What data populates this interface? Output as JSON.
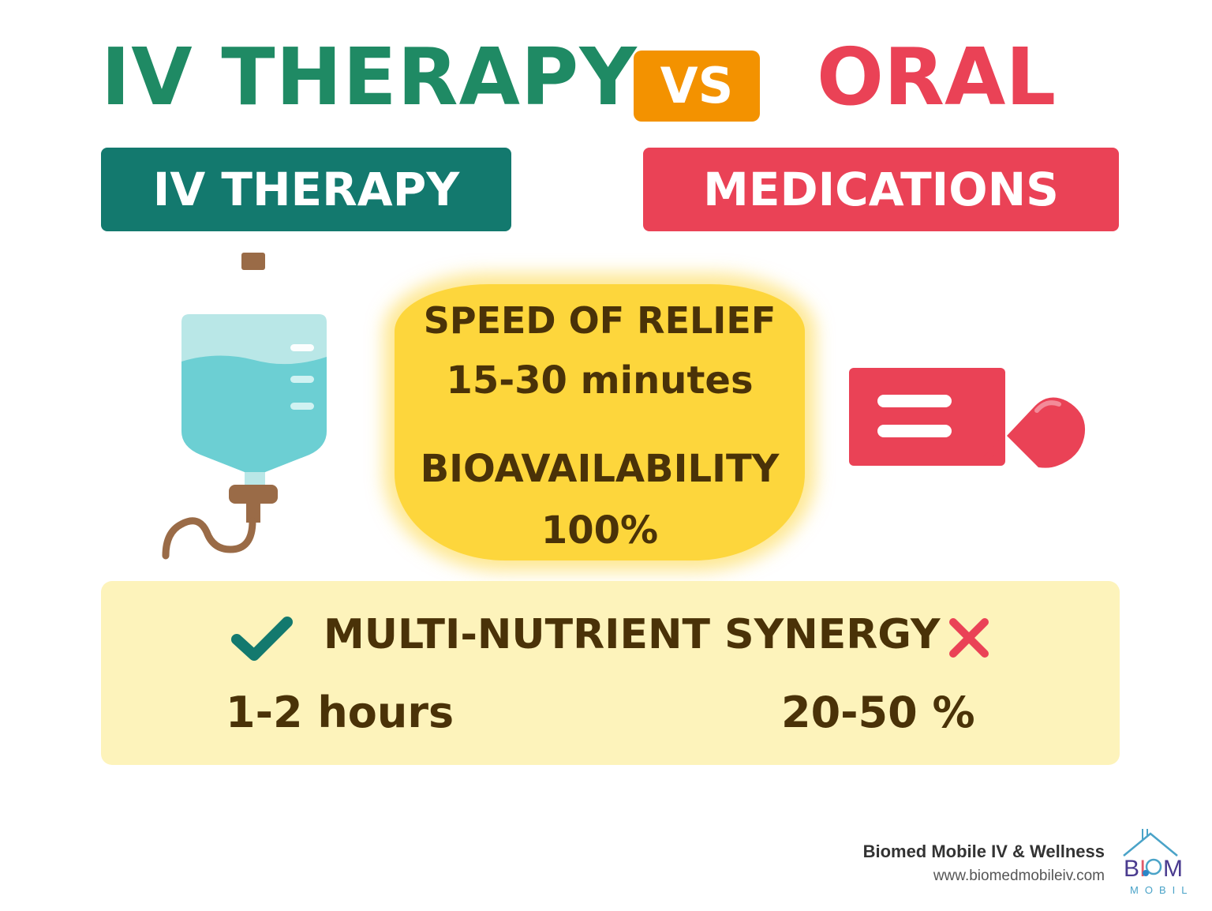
{
  "title": {
    "left": "IV THERAPY",
    "vs": "VS",
    "right": "ORAL"
  },
  "banners": {
    "iv": "IV THERAPY",
    "medications": "MEDICATIONS"
  },
  "center": {
    "speed_label": "SPEED OF RELIEF",
    "speed_value": "15-30 minutes",
    "bioavailability_label": "BIOAVAILABILITY",
    "bioavailability_value": "100%"
  },
  "panel": {
    "synergy_label": "MULTI-NUTRIENT SYNERGY",
    "iv_symbol": "check-icon",
    "oral_symbol": "cross-icon",
    "oral_speed": "1-2 hours",
    "oral_bioavailability": "20-50 %"
  },
  "footer": {
    "company": "Biomed Mobile IV & Wellness",
    "website": "www.biomedmobileiv.com",
    "logo_text": "BIOMOBILE"
  },
  "icons": [
    "iv-bag-icon",
    "pill-capsule-icon",
    "check-icon",
    "cross-icon",
    "logo-icon"
  ],
  "colors": {
    "iv_green": "#1f8a64",
    "iv_teal": "#13796e",
    "oral_red": "#ea4256",
    "vs_orange": "#f39200",
    "highlight_yellow": "#fdd63c",
    "panel_yellow": "#fdf3bb",
    "text_brown": "#4a3208"
  }
}
